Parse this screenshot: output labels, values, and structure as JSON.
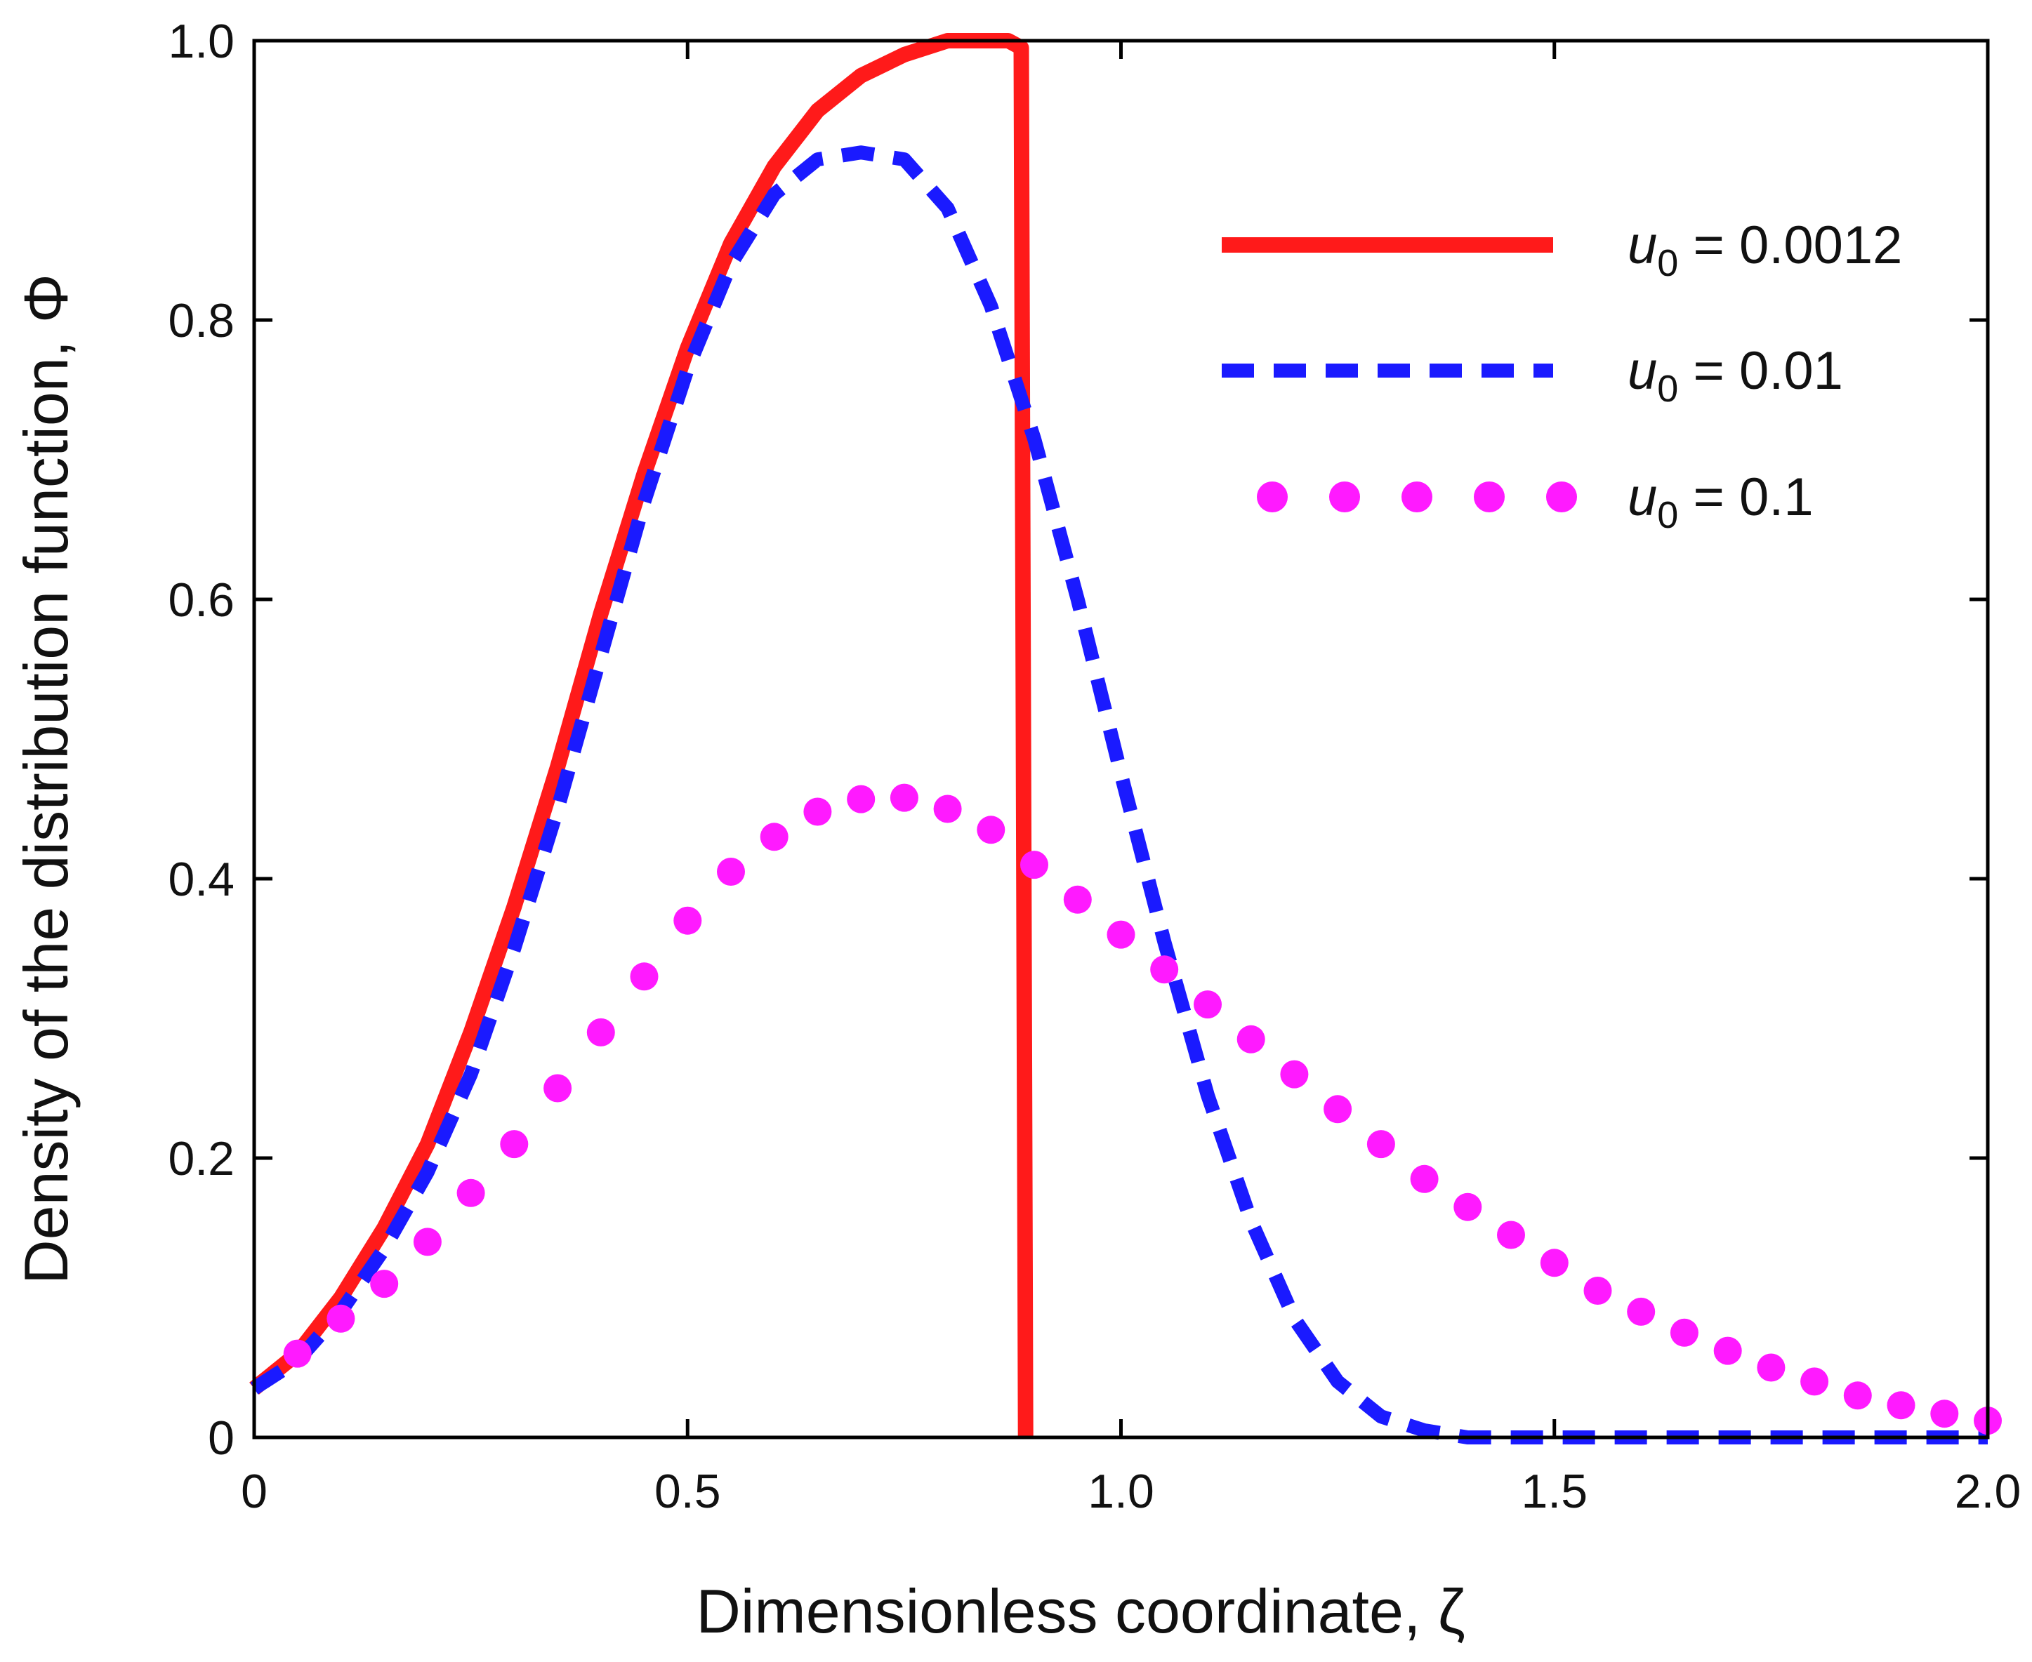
{
  "chart_data": {
    "type": "line",
    "xlabel": "Dimensionless coordinate, ζ",
    "ylabel": "Density of the distribution function, Φ",
    "xlim": [
      0,
      2.0
    ],
    "ylim": [
      0,
      1.0
    ],
    "xticks": [
      0,
      0.5,
      1.0,
      1.5,
      2.0
    ],
    "xtick_labels": [
      "0",
      "0.5",
      "1.0",
      "1.5",
      "2.0"
    ],
    "yticks": [
      0,
      0.2,
      0.4,
      0.6,
      0.8,
      1.0
    ],
    "ytick_labels": [
      "0",
      "0.2",
      "0.4",
      "0.6",
      "0.8",
      "1.0"
    ],
    "legend_position": "top-right",
    "series": [
      {
        "name": "u0 = 0.0012",
        "legend_symbol": "u",
        "legend_sub": "0",
        "legend_value": "= 0.0012",
        "style": "solid",
        "color": "#ff1a1a",
        "x": [
          0,
          0.05,
          0.1,
          0.15,
          0.2,
          0.25,
          0.3,
          0.35,
          0.4,
          0.45,
          0.5,
          0.55,
          0.6,
          0.65,
          0.7,
          0.75,
          0.8,
          0.85,
          0.87,
          0.885,
          0.89
        ],
        "y": [
          0.035,
          0.06,
          0.1,
          0.15,
          0.21,
          0.29,
          0.38,
          0.48,
          0.59,
          0.69,
          0.78,
          0.855,
          0.91,
          0.95,
          0.975,
          0.99,
          1.0,
          1.0,
          1.0,
          0.995,
          0.0
        ]
      },
      {
        "name": "u0 = 0.01",
        "legend_symbol": "u",
        "legend_sub": "0",
        "legend_value": "= 0.01",
        "style": "dashed",
        "color": "#1a1aff",
        "x": [
          0,
          0.05,
          0.1,
          0.15,
          0.2,
          0.25,
          0.3,
          0.35,
          0.4,
          0.45,
          0.5,
          0.55,
          0.6,
          0.65,
          0.7,
          0.75,
          0.8,
          0.85,
          0.9,
          0.95,
          1.0,
          1.05,
          1.1,
          1.15,
          1.2,
          1.25,
          1.3,
          1.35,
          1.4,
          1.5,
          1.6,
          1.7,
          1.8,
          1.9,
          2.0
        ],
        "y": [
          0.035,
          0.055,
          0.09,
          0.135,
          0.19,
          0.26,
          0.35,
          0.45,
          0.56,
          0.67,
          0.765,
          0.84,
          0.89,
          0.915,
          0.92,
          0.915,
          0.88,
          0.81,
          0.715,
          0.6,
          0.475,
          0.355,
          0.245,
          0.155,
          0.085,
          0.04,
          0.015,
          0.005,
          0.0,
          0.0,
          0.0,
          0.0,
          0.0,
          0.0,
          0.0
        ]
      },
      {
        "name": "u0 = 0.1",
        "legend_symbol": "u",
        "legend_sub": "0",
        "legend_value": "= 0.1",
        "style": "dotted",
        "color": "#ff1aff",
        "x": [
          0.05,
          0.1,
          0.15,
          0.2,
          0.25,
          0.3,
          0.35,
          0.4,
          0.45,
          0.5,
          0.55,
          0.6,
          0.65,
          0.7,
          0.75,
          0.8,
          0.85,
          0.9,
          0.95,
          1.0,
          1.05,
          1.1,
          1.15,
          1.2,
          1.25,
          1.3,
          1.35,
          1.4,
          1.45,
          1.5,
          1.55,
          1.6,
          1.65,
          1.7,
          1.75,
          1.8,
          1.85,
          1.9,
          1.95,
          2.0
        ],
        "y": [
          0.06,
          0.085,
          0.11,
          0.14,
          0.175,
          0.21,
          0.25,
          0.29,
          0.33,
          0.37,
          0.405,
          0.43,
          0.448,
          0.457,
          0.458,
          0.45,
          0.435,
          0.41,
          0.385,
          0.36,
          0.335,
          0.31,
          0.285,
          0.26,
          0.235,
          0.21,
          0.185,
          0.165,
          0.145,
          0.125,
          0.105,
          0.09,
          0.075,
          0.062,
          0.05,
          0.04,
          0.03,
          0.023,
          0.017,
          0.012
        ]
      }
    ]
  }
}
